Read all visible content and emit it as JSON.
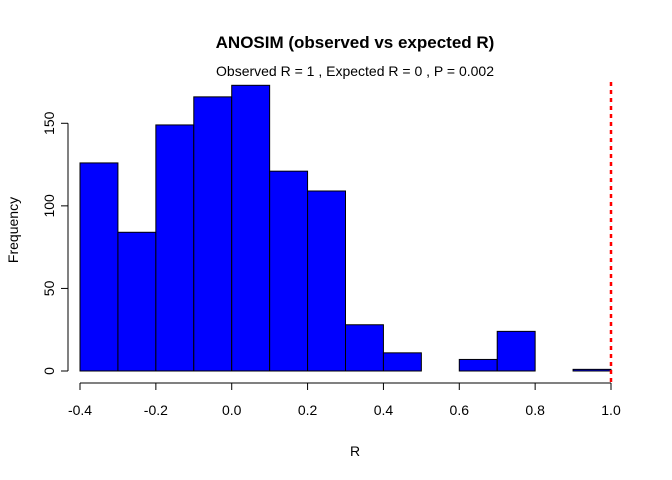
{
  "chart_data": {
    "type": "bar",
    "title": "ANOSIM (observed vs expected R)",
    "subtitle": "Observed R =  1 , Expected R =  0 , P =  0.002",
    "xlabel": "R",
    "ylabel": "Frequency",
    "bin_edges": [
      -0.4,
      -0.3,
      -0.2,
      -0.1,
      0.0,
      0.1,
      0.2,
      0.3,
      0.4,
      0.5,
      0.6,
      0.7,
      0.8,
      0.9,
      1.0
    ],
    "values": [
      126,
      84,
      149,
      166,
      173,
      121,
      109,
      28,
      11,
      0,
      7,
      24,
      0,
      1
    ],
    "xlim": [
      -0.4,
      1.0
    ],
    "ylim": [
      0,
      175
    ],
    "x_ticks": [
      "-0.4",
      "-0.2",
      "0.0",
      "0.2",
      "0.4",
      "0.6",
      "0.8",
      "1.0"
    ],
    "y_ticks": [
      "0",
      "50",
      "100",
      "150"
    ],
    "bar_color": "#0000ff",
    "observed_line": {
      "value": 1.0,
      "color": "#ff0000",
      "style": "dashed"
    }
  }
}
